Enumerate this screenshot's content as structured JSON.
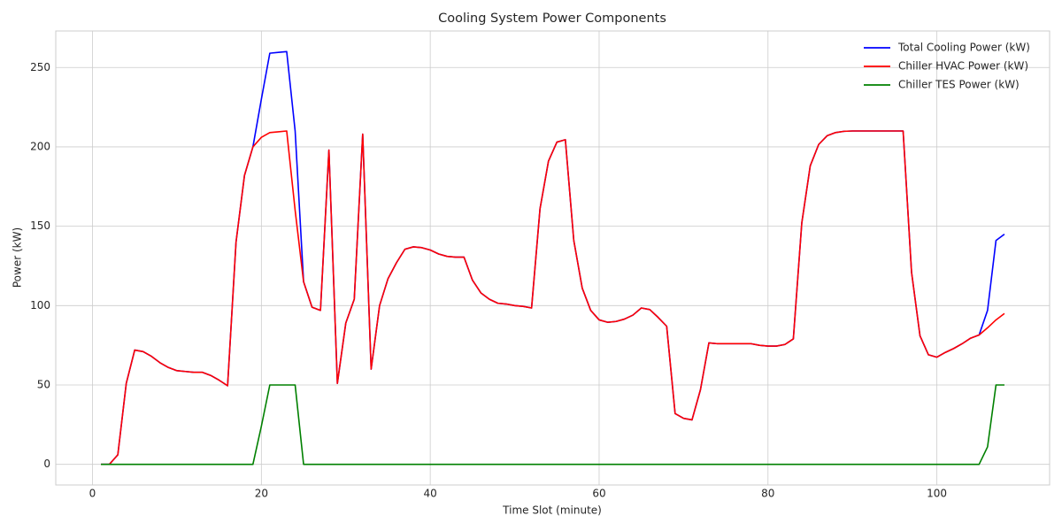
{
  "chart_data": {
    "type": "line",
    "title": "Cooling System Power Components",
    "x_label": "Time Slot (minute)",
    "y_label": "Power (kW)",
    "x": [
      1,
      2,
      3,
      4,
      5,
      6,
      7,
      8,
      9,
      10,
      11,
      12,
      13,
      14,
      15,
      16,
      17,
      18,
      19,
      20,
      21,
      22,
      23,
      24,
      25,
      26,
      27,
      28,
      29,
      30,
      31,
      32,
      33,
      34,
      35,
      36,
      37,
      38,
      39,
      40,
      41,
      42,
      43,
      44,
      45,
      46,
      47,
      48,
      49,
      50,
      51,
      52,
      53,
      54,
      55,
      56,
      57,
      58,
      59,
      60,
      61,
      62,
      63,
      64,
      65,
      66,
      67,
      68,
      69,
      70,
      71,
      72,
      73,
      74,
      75,
      76,
      77,
      78,
      79,
      80,
      81,
      82,
      83,
      84,
      85,
      86,
      87,
      88,
      89,
      90,
      91,
      92,
      93,
      94,
      95,
      96,
      97,
      98,
      99,
      100,
      101,
      102,
      103,
      104,
      105,
      106,
      107,
      108
    ],
    "series": [
      {
        "name": "Total Cooling Power (kW)",
        "color": "#0000ff",
        "values": [
          0,
          0,
          6,
          51,
          72,
          71,
          68,
          64,
          61,
          59,
          58.5,
          58,
          58,
          56,
          53,
          49.5,
          140,
          182,
          200,
          230,
          259,
          259.5,
          260,
          210,
          115,
          99,
          97,
          198,
          51,
          89,
          104,
          208,
          60,
          100,
          117,
          127,
          135.5,
          137,
          136.5,
          135,
          132.5,
          131,
          130.5,
          130.5,
          116,
          108,
          104,
          101.5,
          101,
          100,
          99.5,
          98.5,
          161,
          191,
          203,
          204.5,
          141,
          111,
          97,
          91,
          89.5,
          90,
          91.5,
          94,
          98.5,
          97.5,
          92.5,
          87,
          32,
          29,
          28,
          47,
          76.5,
          76,
          76,
          76,
          76,
          76,
          75,
          74.5,
          74.5,
          75.5,
          79,
          152,
          188,
          201.5,
          207,
          209,
          209.8,
          210,
          210,
          210,
          210,
          210,
          210,
          210,
          121,
          81,
          69,
          67.5,
          70.5,
          73,
          76,
          79.5,
          81.5,
          97,
          141,
          145
        ]
      },
      {
        "name": "Chiller HVAC Power (kW)",
        "color": "#ff0000",
        "values": [
          0,
          0,
          6,
          51,
          72,
          71,
          68,
          64,
          61,
          59,
          58.5,
          58,
          58,
          56,
          53,
          49.5,
          140,
          182,
          200,
          206,
          209,
          209.5,
          210,
          160,
          115,
          99,
          97,
          198,
          51,
          89,
          104,
          208,
          60,
          100,
          117,
          127,
          135.5,
          137,
          136.5,
          135,
          132.5,
          131,
          130.5,
          130.5,
          116,
          108,
          104,
          101.5,
          101,
          100,
          99.5,
          98.5,
          161,
          191,
          203,
          204.5,
          141,
          111,
          97,
          91,
          89.5,
          90,
          91.5,
          94,
          98.5,
          97.5,
          92.5,
          87,
          32,
          29,
          28,
          47,
          76.5,
          76,
          76,
          76,
          76,
          76,
          75,
          74.5,
          74.5,
          75.5,
          79,
          152,
          188,
          201.5,
          207,
          209,
          209.8,
          210,
          210,
          210,
          210,
          210,
          210,
          210,
          121,
          81,
          69,
          67.5,
          70.5,
          73,
          76,
          79.5,
          81.5,
          86,
          91,
          95
        ]
      },
      {
        "name": "Chiller TES Power (kW)",
        "color": "#008000",
        "values": [
          0,
          0,
          0,
          0,
          0,
          0,
          0,
          0,
          0,
          0,
          0,
          0,
          0,
          0,
          0,
          0,
          0,
          0,
          0,
          24,
          50,
          50,
          50,
          50,
          0,
          0,
          0,
          0,
          0,
          0,
          0,
          0,
          0,
          0,
          0,
          0,
          0,
          0,
          0,
          0,
          0,
          0,
          0,
          0,
          0,
          0,
          0,
          0,
          0,
          0,
          0,
          0,
          0,
          0,
          0,
          0,
          0,
          0,
          0,
          0,
          0,
          0,
          0,
          0,
          0,
          0,
          0,
          0,
          0,
          0,
          0,
          0,
          0,
          0,
          0,
          0,
          0,
          0,
          0,
          0,
          0,
          0,
          0,
          0,
          0,
          0,
          0,
          0,
          0,
          0,
          0,
          0,
          0,
          0,
          0,
          0,
          0,
          0,
          0,
          0,
          0,
          0,
          0,
          0,
          0,
          11,
          50,
          50
        ]
      }
    ],
    "xlim": [
      -4.35,
      113.35
    ],
    "ylim": [
      -13,
      273
    ],
    "xticks": [
      0,
      20,
      40,
      60,
      80,
      100
    ],
    "yticks": [
      0,
      50,
      100,
      150,
      200,
      250
    ],
    "grid": true,
    "legend": "upper right"
  }
}
